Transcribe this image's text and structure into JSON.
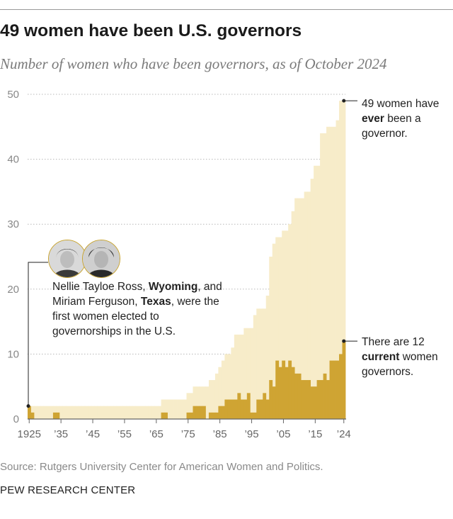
{
  "title": "49 women have been U.S. governors",
  "subtitle": "Number of women who have been governors, as of October 2024",
  "source": "Source: Rutgers University Center for American Women and Politics.",
  "org": "PEW RESEARCH CENTER",
  "colors": {
    "ever": "#f7ecc9",
    "current": "#cfa433",
    "grid": "#b8b8b8",
    "axis": "#666666",
    "text": "#222222"
  },
  "annotations": {
    "first": {
      "parts": [
        {
          "text": "Nellie Tayloe Ross, ",
          "bold": false
        },
        {
          "text": "Wyoming",
          "bold": true
        },
        {
          "text": ", and Miriam Ferguson, ",
          "bold": false
        },
        {
          "text": "Texas",
          "bold": true
        },
        {
          "text": ", were the first women elected to governorships in the U.S.",
          "bold": false
        }
      ],
      "year": 1925,
      "value": 2,
      "portraits": [
        "Nellie Tayloe Ross portrait",
        "Miriam Ferguson portrait"
      ]
    },
    "ever": {
      "parts": [
        {
          "text": "49 women have ",
          "bold": false
        },
        {
          "text": "ever",
          "bold": true
        },
        {
          "text": " been a governor.",
          "bold": false
        }
      ],
      "year": 2024,
      "value": 49
    },
    "current": {
      "parts": [
        {
          "text": "There are 12 ",
          "bold": false
        },
        {
          "text": "current",
          "bold": true
        },
        {
          "text": " women governors.",
          "bold": false
        }
      ],
      "year": 2024,
      "value": 12
    }
  },
  "chart_data": {
    "type": "bar",
    "title": "49 women have been U.S. governors",
    "subtitle": "Number of women who have been governors, as of October 2024",
    "xlabel": "",
    "ylabel": "",
    "ylim": [
      0,
      50
    ],
    "yticks": [
      0,
      10,
      20,
      30,
      40,
      50
    ],
    "xtick_years": [
      1925,
      1935,
      1945,
      1955,
      1965,
      1975,
      1985,
      1995,
      2005,
      2015,
      2024
    ],
    "xtick_labels": [
      "1925",
      "’35",
      "’45",
      "’55",
      "’65",
      "’75",
      "’85",
      "’95",
      "’05",
      "’15",
      "’24"
    ],
    "grid": true,
    "categories": [
      1925,
      1926,
      1927,
      1928,
      1929,
      1930,
      1931,
      1932,
      1933,
      1934,
      1935,
      1936,
      1937,
      1938,
      1939,
      1940,
      1941,
      1942,
      1943,
      1944,
      1945,
      1946,
      1947,
      1948,
      1949,
      1950,
      1951,
      1952,
      1953,
      1954,
      1955,
      1956,
      1957,
      1958,
      1959,
      1960,
      1961,
      1962,
      1963,
      1964,
      1965,
      1966,
      1967,
      1968,
      1969,
      1970,
      1971,
      1972,
      1973,
      1974,
      1975,
      1976,
      1977,
      1978,
      1979,
      1980,
      1981,
      1982,
      1983,
      1984,
      1985,
      1986,
      1987,
      1988,
      1989,
      1990,
      1991,
      1992,
      1993,
      1994,
      1995,
      1996,
      1997,
      1998,
      1999,
      2000,
      2001,
      2002,
      2003,
      2004,
      2005,
      2006,
      2007,
      2008,
      2009,
      2010,
      2011,
      2012,
      2013,
      2014,
      2015,
      2016,
      2017,
      2018,
      2019,
      2020,
      2021,
      2022,
      2023,
      2024
    ],
    "series": [
      {
        "name": "Ever been governor",
        "values": [
          2,
          2,
          2,
          2,
          2,
          2,
          2,
          2,
          2,
          2,
          2,
          2,
          2,
          2,
          2,
          2,
          2,
          2,
          2,
          2,
          2,
          2,
          2,
          2,
          2,
          2,
          2,
          2,
          2,
          2,
          2,
          2,
          2,
          2,
          2,
          2,
          2,
          2,
          2,
          2,
          2,
          2,
          3,
          3,
          3,
          3,
          3,
          3,
          3,
          3,
          4,
          4,
          5,
          5,
          5,
          5,
          5,
          6,
          6,
          7,
          8,
          9,
          10,
          10,
          11,
          13,
          13,
          13,
          14,
          14,
          14,
          16,
          17,
          17,
          17,
          19,
          25,
          27,
          28,
          28,
          29,
          29,
          30,
          32,
          34,
          34,
          34,
          35,
          35,
          37,
          39,
          39,
          44,
          44,
          45,
          45,
          45,
          46,
          49,
          49
        ]
      },
      {
        "name": "Current governors",
        "values": [
          2,
          1,
          0,
          0,
          0,
          0,
          0,
          0,
          1,
          1,
          0,
          0,
          0,
          0,
          0,
          0,
          0,
          0,
          0,
          0,
          0,
          0,
          0,
          0,
          0,
          0,
          0,
          0,
          0,
          0,
          0,
          0,
          0,
          0,
          0,
          0,
          0,
          0,
          0,
          0,
          0,
          0,
          1,
          1,
          0,
          0,
          0,
          0,
          0,
          0,
          1,
          1,
          2,
          2,
          2,
          2,
          0,
          1,
          1,
          1,
          2,
          2,
          3,
          3,
          3,
          3,
          4,
          3,
          3,
          4,
          1,
          1,
          3,
          3,
          4,
          3,
          6,
          5,
          9,
          8,
          9,
          8,
          9,
          8,
          7,
          7,
          6,
          6,
          6,
          5,
          5,
          6,
          6,
          7,
          6,
          9,
          9,
          9,
          10,
          12
        ]
      }
    ]
  }
}
